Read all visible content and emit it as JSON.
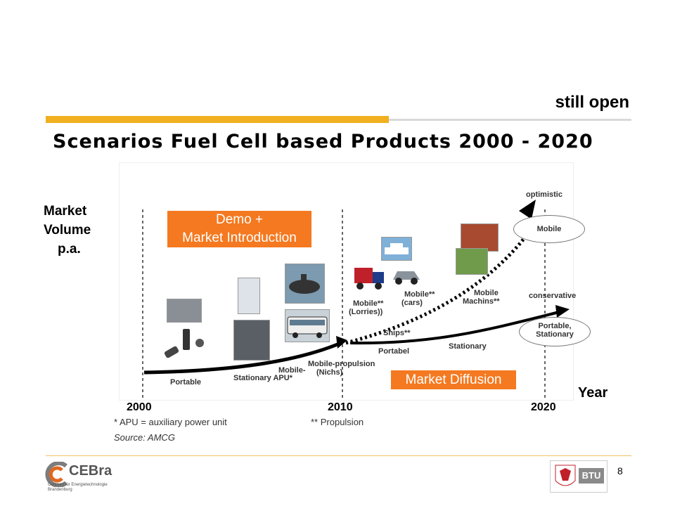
{
  "header": {
    "status": "still open",
    "title": "Scenarios Fuel Cell based Products 2000 - 2020"
  },
  "axis": {
    "ylabel": [
      "Market",
      "Volume",
      "p.a."
    ],
    "xlabel": "Year",
    "years": [
      "2000",
      "2010",
      "2020"
    ]
  },
  "phases": {
    "demo": [
      "Demo +",
      "Market Introduction"
    ],
    "diffusion": "Market Diffusion"
  },
  "labels": {
    "portable": "Portable",
    "stationary_apu": "Stationary APU*",
    "mobile_niche_1": "Mobile-",
    "mobile_niche_2": "Mobile-propulsion",
    "mobile_niche_3": "(Nichs)",
    "lorries_1": "Mobile**",
    "lorries_2": "(Lorries))",
    "cars_1": "Mobile**",
    "cars_2": "(cars)",
    "machines_1": "Mobile",
    "machines_2": "Machins**",
    "ships": "Ships**",
    "portabel": "Portabel",
    "stationary": "Stationary",
    "optimistic": "optimistic",
    "conservative": "conservative",
    "ellipse_mobile": "Mobile",
    "ellipse_portable_1": "Portable,",
    "ellipse_portable_2": "Stationary"
  },
  "notes": {
    "apu": "* APU = auxiliary power unit",
    "propulsion": "** Propulsion",
    "source": "Source: AMCG"
  },
  "footer": {
    "page": "8",
    "logo_left": "CEBra",
    "logo_left_sub": "Centrum für Energietechnologie Brandenburg",
    "logo_right": "BTU"
  },
  "colors": {
    "accent_orange": "#f47920",
    "bar_yellow": "#f0b020"
  }
}
